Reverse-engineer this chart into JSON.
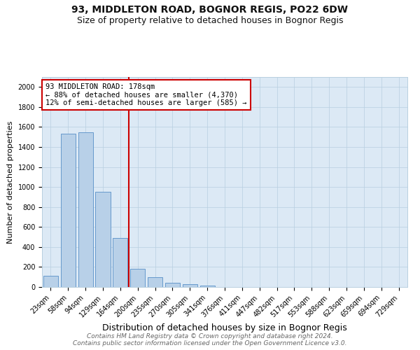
{
  "title": "93, MIDDLETON ROAD, BOGNOR REGIS, PO22 6DW",
  "subtitle": "Size of property relative to detached houses in Bognor Regis",
  "xlabel": "Distribution of detached houses by size in Bognor Regis",
  "ylabel": "Number of detached properties",
  "categories": [
    "23sqm",
    "58sqm",
    "94sqm",
    "129sqm",
    "164sqm",
    "200sqm",
    "235sqm",
    "270sqm",
    "305sqm",
    "341sqm",
    "376sqm",
    "411sqm",
    "447sqm",
    "482sqm",
    "517sqm",
    "553sqm",
    "588sqm",
    "623sqm",
    "659sqm",
    "694sqm",
    "729sqm"
  ],
  "values": [
    110,
    1530,
    1550,
    950,
    490,
    180,
    100,
    45,
    25,
    15,
    0,
    0,
    0,
    0,
    0,
    0,
    0,
    0,
    0,
    0,
    0
  ],
  "bar_color": "#b8d0e8",
  "bar_edge_color": "#6699cc",
  "subject_line_color": "#cc0000",
  "annotation_text": "93 MIDDLETON ROAD: 178sqm\n← 88% of detached houses are smaller (4,370)\n12% of semi-detached houses are larger (585) →",
  "annotation_box_color": "#ffffff",
  "annotation_box_edge": "#cc0000",
  "ylim": [
    0,
    2100
  ],
  "yticks": [
    0,
    200,
    400,
    600,
    800,
    1000,
    1200,
    1400,
    1600,
    1800,
    2000
  ],
  "plot_bg_color": "#dce9f5",
  "footer_line1": "Contains HM Land Registry data © Crown copyright and database right 2024.",
  "footer_line2": "Contains public sector information licensed under the Open Government Licence v3.0.",
  "title_fontsize": 10,
  "subtitle_fontsize": 9,
  "xlabel_fontsize": 9,
  "ylabel_fontsize": 8,
  "tick_fontsize": 7,
  "annot_fontsize": 7.5,
  "footer_fontsize": 6.5
}
